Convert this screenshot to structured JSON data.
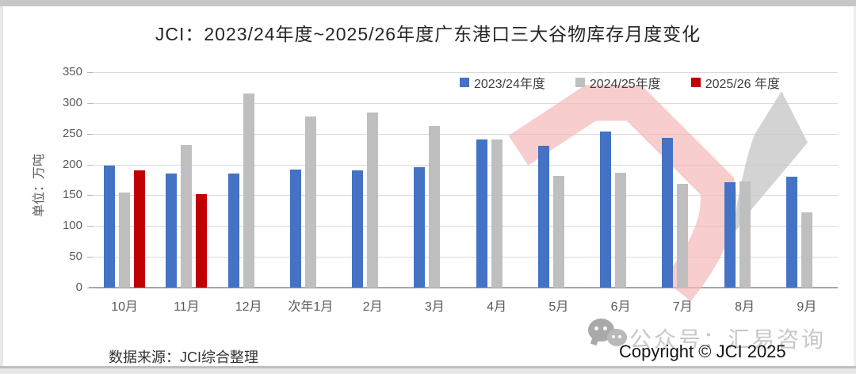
{
  "page": {
    "title": "JCI：2023/24年度~2025/26年度广东港口三大谷物库存月度变化"
  },
  "chart_data": {
    "type": "bar",
    "title": "JCI：2023/24年度~2025/26年度广东港口三大谷物库存月度变化",
    "unit_label": "单位：万吨",
    "categories": [
      "10月",
      "11月",
      "12月",
      "次年1月",
      "2月",
      "3月",
      "4月",
      "5月",
      "6月",
      "7月",
      "8月",
      "9月"
    ],
    "series": [
      {
        "name": "2023/24年度",
        "color": "#4472C4",
        "values": [
          198,
          185,
          185,
          192,
          191,
          196,
          240,
          230,
          254,
          243,
          171,
          180
        ]
      },
      {
        "name": "2024/25年度",
        "color": "#BFBFBF",
        "values": [
          154,
          231,
          315,
          278,
          284,
          263,
          241,
          181,
          187,
          169,
          173,
          122
        ]
      },
      {
        "name": "2025/26 年度",
        "color": "#C00000",
        "values": [
          190,
          152,
          null,
          null,
          null,
          null,
          null,
          null,
          null,
          null,
          null,
          null
        ]
      }
    ],
    "ylim": [
      0,
      350
    ],
    "ytick_step": 50,
    "grid": true,
    "legend_position": "top-right"
  },
  "footer": {
    "source": "数据来源：JCI综合整理",
    "copyright": "Copyright © JCI 2025",
    "wechat_watermark": "公众号：汇易咨询"
  },
  "icons": {
    "wechat": "wechat-icon"
  },
  "colors": {
    "series_blue": "#4472C4",
    "series_gray": "#BFBFBF",
    "series_red": "#C00000",
    "axis_line": "#a6a6a6",
    "gridline": "#dadada",
    "watermark_pink": "#f5baba",
    "watermark_gray": "#c8c8c8"
  }
}
